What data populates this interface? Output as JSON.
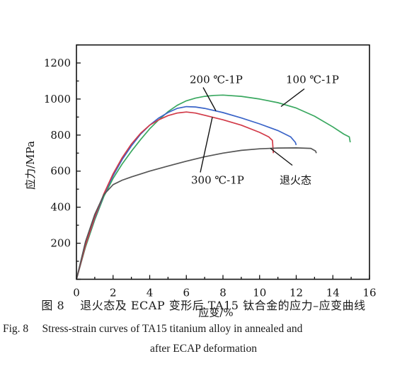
{
  "chart_data": {
    "type": "line",
    "xlabel": "应变/%",
    "ylabel": "应力/MPa",
    "xlim": [
      0,
      16
    ],
    "ylim": [
      0,
      1300
    ],
    "xticks": [
      0,
      2,
      4,
      6,
      8,
      10,
      12,
      14,
      16
    ],
    "yticks": [
      200,
      400,
      600,
      800,
      1000,
      1200
    ],
    "grid": false,
    "series": [
      {
        "name": "100 ℃-1P",
        "color": "#3aa860",
        "points": [
          [
            0,
            0
          ],
          [
            0.5,
            180
          ],
          [
            1,
            330
          ],
          [
            1.5,
            460
          ],
          [
            2,
            560
          ],
          [
            2.5,
            640
          ],
          [
            3,
            710
          ],
          [
            3.5,
            775
          ],
          [
            4,
            835
          ],
          [
            4.5,
            885
          ],
          [
            5,
            930
          ],
          [
            5.5,
            965
          ],
          [
            6,
            990
          ],
          [
            6.5,
            1005
          ],
          [
            7,
            1015
          ],
          [
            7.5,
            1020
          ],
          [
            8,
            1022
          ],
          [
            9,
            1015
          ],
          [
            10,
            1000
          ],
          [
            11,
            980
          ],
          [
            12,
            950
          ],
          [
            13,
            905
          ],
          [
            14,
            845
          ],
          [
            14.6,
            805
          ],
          [
            14.9,
            790
          ],
          [
            14.95,
            760
          ]
        ]
      },
      {
        "name": "200 ℃-1P",
        "color": "#3a64c8",
        "points": [
          [
            0,
            0
          ],
          [
            0.5,
            190
          ],
          [
            1,
            340
          ],
          [
            1.5,
            470
          ],
          [
            2,
            575
          ],
          [
            2.5,
            665
          ],
          [
            3,
            740
          ],
          [
            3.5,
            805
          ],
          [
            4,
            855
          ],
          [
            4.5,
            895
          ],
          [
            5,
            925
          ],
          [
            5.5,
            948
          ],
          [
            6,
            958
          ],
          [
            6.5,
            956
          ],
          [
            7,
            948
          ],
          [
            8,
            925
          ],
          [
            9,
            895
          ],
          [
            10,
            862
          ],
          [
            11,
            825
          ],
          [
            11.7,
            790
          ],
          [
            11.95,
            760
          ],
          [
            12,
            745
          ]
        ]
      },
      {
        "name": "300 ℃-1P",
        "color": "#d23a48",
        "points": [
          [
            0,
            0
          ],
          [
            0.5,
            190
          ],
          [
            1,
            345
          ],
          [
            1.5,
            475
          ],
          [
            2,
            585
          ],
          [
            2.5,
            675
          ],
          [
            3,
            750
          ],
          [
            3.5,
            810
          ],
          [
            4,
            855
          ],
          [
            4.5,
            885
          ],
          [
            5,
            908
          ],
          [
            5.5,
            922
          ],
          [
            6,
            928
          ],
          [
            6.5,
            922
          ],
          [
            7,
            910
          ],
          [
            8,
            885
          ],
          [
            9,
            855
          ],
          [
            10,
            815
          ],
          [
            10.5,
            790
          ],
          [
            10.7,
            770
          ],
          [
            10.75,
            700
          ]
        ]
      },
      {
        "name": "退火态",
        "color": "#555555",
        "points": [
          [
            0,
            0
          ],
          [
            0.5,
            210
          ],
          [
            1,
            360
          ],
          [
            1.5,
            470
          ],
          [
            2,
            525
          ],
          [
            2.5,
            550
          ],
          [
            3,
            568
          ],
          [
            4,
            600
          ],
          [
            5,
            628
          ],
          [
            6,
            655
          ],
          [
            7,
            680
          ],
          [
            8,
            700
          ],
          [
            9,
            715
          ],
          [
            10,
            724
          ],
          [
            11,
            728
          ],
          [
            12,
            729
          ],
          [
            12.8,
            726
          ],
          [
            13.05,
            712
          ],
          [
            13.1,
            700
          ]
        ]
      }
    ]
  },
  "annotations": [
    {
      "id": "label-200",
      "text": "200 ℃-1P",
      "series": "200 ℃-1P"
    },
    {
      "id": "label-100",
      "text": "100 ℃-1P",
      "series": "100 ℃-1P"
    },
    {
      "id": "label-300",
      "text": "300 ℃-1P",
      "series": "300 ℃-1P"
    },
    {
      "id": "label-annealed",
      "text": "退火态",
      "series": "退火态"
    }
  ],
  "caption": {
    "cn": "图 8 　退火态及 ECAP 变形后 TA15 钛合金的应力–应变曲线",
    "en_line1": "Fig. 8 　Stress-strain curves of TA15 titanium alloy in annealed and",
    "en_line2": "after ECAP deformation"
  }
}
